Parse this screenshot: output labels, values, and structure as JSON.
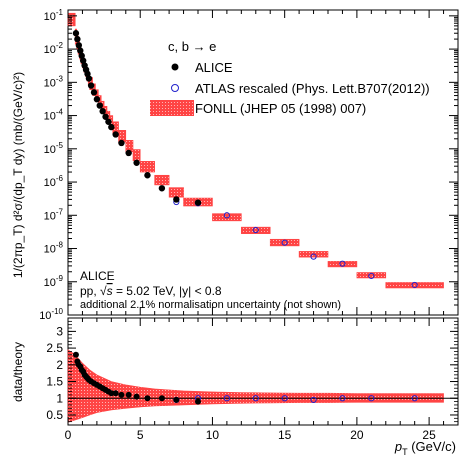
{
  "chart_data": [
    {
      "type": "scatter",
      "panel": "top",
      "yscale": "log",
      "ylabel": "1/(2πp_T) d²σ/(dp_T dy) (mb/(GeV/c)²)",
      "ylim": [
        1e-10,
        0.15
      ],
      "xlim": [
        0,
        27
      ],
      "x_ticks": [
        0,
        5,
        10,
        15,
        20,
        25
      ],
      "y_ticks": [
        {
          "v": 1e-10,
          "exp": "-10"
        },
        {
          "v": 1e-09,
          "exp": "-9"
        },
        {
          "v": 1e-08,
          "exp": "-8"
        },
        {
          "v": 1e-07,
          "exp": "-7"
        },
        {
          "v": 1e-06,
          "exp": "-6"
        },
        {
          "v": 1e-05,
          "exp": "-5"
        },
        {
          "v": 0.0001,
          "exp": "-4"
        },
        {
          "v": 0.001,
          "exp": "-3"
        },
        {
          "v": 0.01,
          "exp": "-2"
        },
        {
          "v": 0.1,
          "exp": "-1"
        }
      ],
      "legend": {
        "header": "c, b → e",
        "entries": [
          {
            "label": "ALICE",
            "marker": "filled-circle"
          },
          {
            "label": "ATLAS rescaled (Phys. Lett.B707(2012))",
            "marker": "open-circle",
            "color": "#2222cc"
          },
          {
            "label": "FONLL (JHEP 05 (1998) 007)",
            "marker": "band",
            "color": "#ff4444"
          }
        ]
      },
      "annotations": {
        "experiment": "ALICE",
        "system_prefix": "pp, ",
        "sqrt_symbol": "√",
        "sqrt_s_label": "s",
        "system_suffix": " = 5.02 TeV, |y| < 0.8",
        "note": "additional 2.1% normalisation uncertainty (not shown)"
      },
      "series": [
        {
          "name": "ALICE",
          "x": [
            0.55,
            0.65,
            0.75,
            0.85,
            0.95,
            1.05,
            1.15,
            1.25,
            1.35,
            1.45,
            1.6,
            1.8,
            2.0,
            2.2,
            2.4,
            2.6,
            2.8,
            3.0,
            3.3,
            3.7,
            4.2,
            4.75,
            5.5,
            6.5,
            7.5,
            9.0
          ],
          "y": [
            0.03,
            0.02,
            0.013,
            0.009,
            0.0063,
            0.0045,
            0.0032,
            0.0024,
            0.0018,
            0.0013,
            0.0008,
            0.0005,
            0.00031,
            0.0002,
            0.000135,
            9.2e-05,
            6.5e-05,
            4.5e-05,
            2.7e-05,
            1.5e-05,
            7.5e-06,
            3.8e-06,
            1.6e-06,
            6.5e-07,
            3e-07,
            2.4e-07
          ]
        },
        {
          "name": "ATLAS rescaled (Phys. Lett.B707(2012))",
          "x": [
            7.5,
            9.0,
            11.0,
            13.0,
            15.0,
            17.0,
            19.0,
            21.0,
            24.0
          ],
          "y": [
            2.5e-07,
            2.3e-07,
            1e-07,
            3.6e-08,
            1.5e-08,
            5.7e-09,
            3.5e-09,
            1.5e-09,
            8e-10
          ]
        },
        {
          "name": "FONLL (JHEP 05 (1998) 007)",
          "bins": [
            [
              0.0,
              0.5,
              0.12,
              0.05
            ],
            [
              0.5,
              0.6,
              0.04,
              0.014
            ],
            [
              0.6,
              0.7,
              0.026,
              0.01
            ],
            [
              0.7,
              0.8,
              0.018,
              0.007
            ],
            [
              0.8,
              0.9,
              0.012,
              0.005
            ],
            [
              0.9,
              1.0,
              0.0085,
              0.0036
            ],
            [
              1.0,
              1.1,
              0.0062,
              0.0027
            ],
            [
              1.1,
              1.2,
              0.0046,
              0.002
            ],
            [
              1.2,
              1.3,
              0.0034,
              0.0015
            ],
            [
              1.3,
              1.4,
              0.0026,
              0.0011
            ],
            [
              1.4,
              1.5,
              0.002,
              0.00085
            ],
            [
              1.5,
              1.7,
              0.0014,
              0.0006
            ],
            [
              1.7,
              1.9,
              0.0009,
              0.0004
            ],
            [
              1.9,
              2.1,
              0.0006,
              0.00026
            ],
            [
              2.1,
              2.3,
              0.0004,
              0.00018
            ],
            [
              2.3,
              2.5,
              0.00027,
              0.00012
            ],
            [
              2.5,
              2.7,
              0.00019,
              8.5e-05
            ],
            [
              2.7,
              2.9,
              0.000135,
              6e-05
            ],
            [
              2.9,
              3.1,
              0.0001,
              4.4e-05
            ],
            [
              3.1,
              3.5,
              6.5e-05,
              2.8e-05
            ],
            [
              3.5,
              4.0,
              3.6e-05,
              1.6e-05
            ],
            [
              4.0,
              4.5,
              1.8e-05,
              8.2e-06
            ],
            [
              4.5,
              5.0,
              9.5e-06,
              4.4e-06
            ],
            [
              5.0,
              6.0,
              4.2e-06,
              2e-06
            ],
            [
              6.0,
              7.0,
              1.6e-06,
              8.2e-07
            ],
            [
              7.0,
              8.0,
              6.8e-07,
              3.5e-07
            ],
            [
              8.0,
              10.0,
              3.3e-07,
              1.9e-07
            ],
            [
              10.0,
              12.0,
              1.12e-07,
              6.8e-08
            ],
            [
              12.0,
              14.0,
              4.4e-08,
              2.8e-08
            ],
            [
              14.0,
              16.0,
              1.9e-08,
              1.2e-08
            ],
            [
              16.0,
              18.0,
              8.2e-09,
              5.5e-09
            ],
            [
              18.0,
              20.0,
              4.1e-09,
              2.8e-09
            ],
            [
              20.0,
              22.0,
              1.9e-09,
              1.3e-09
            ],
            [
              22.0,
              26.0,
              9.5e-10,
              6.5e-10
            ]
          ]
        }
      ]
    },
    {
      "type": "scatter",
      "panel": "ratio",
      "ylabel": "data/theory",
      "xlabel_symbol": "p",
      "xlabel_sub": "T",
      "xlabel_unit": " (GeV/c)",
      "xlim": [
        0,
        27
      ],
      "ylim": [
        0.2,
        3.4
      ],
      "x_ticks": [
        0,
        5,
        10,
        15,
        20,
        25
      ],
      "y_ticks": [
        0.5,
        1,
        1.5,
        2,
        2.5,
        3
      ],
      "series": [
        {
          "name": "ALICE",
          "x": [
            0.55,
            0.65,
            0.75,
            0.85,
            0.95,
            1.05,
            1.15,
            1.25,
            1.35,
            1.45,
            1.6,
            1.8,
            2.0,
            2.2,
            2.4,
            2.6,
            2.8,
            3.0,
            3.3,
            3.7,
            4.2,
            4.75,
            5.5,
            6.5,
            7.5,
            9.0
          ],
          "y": [
            2.3,
            2.1,
            2.0,
            1.95,
            1.85,
            1.8,
            1.7,
            1.65,
            1.6,
            1.55,
            1.5,
            1.45,
            1.4,
            1.35,
            1.3,
            1.25,
            1.2,
            1.15,
            1.15,
            1.1,
            1.1,
            1.05,
            1.0,
            1.0,
            0.95,
            0.9
          ]
        },
        {
          "name": "ATLAS rescaled (Phys. Lett.B707(2012))",
          "x": [
            7.5,
            9.0,
            11.0,
            13.0,
            15.0,
            17.0,
            19.0,
            21.0,
            24.0
          ],
          "y": [
            0.95,
            1.0,
            1.0,
            1.0,
            1.0,
            0.95,
            1.0,
            1.0,
            1.0
          ]
        },
        {
          "name": "FONLL (JHEP 05 (1998) 007)",
          "x": [
            0.0,
            0.5,
            1.0,
            1.5,
            2.0,
            3.0,
            4.0,
            5.0,
            6.0,
            8.0,
            10.0,
            12.0,
            14.0,
            16.0,
            18.0,
            20.0,
            22.0,
            24.0,
            26.0
          ],
          "y_low": [
            0.28,
            0.35,
            0.42,
            0.5,
            0.57,
            0.65,
            0.7,
            0.74,
            0.77,
            0.8,
            0.83,
            0.85,
            0.86,
            0.87,
            0.87,
            0.88,
            0.88,
            0.88,
            0.88
          ],
          "y_high": [
            2.45,
            2.3,
            2.05,
            1.85,
            1.7,
            1.5,
            1.4,
            1.33,
            1.28,
            1.22,
            1.19,
            1.17,
            1.16,
            1.15,
            1.15,
            1.14,
            1.14,
            1.14,
            1.14
          ]
        }
      ]
    }
  ]
}
